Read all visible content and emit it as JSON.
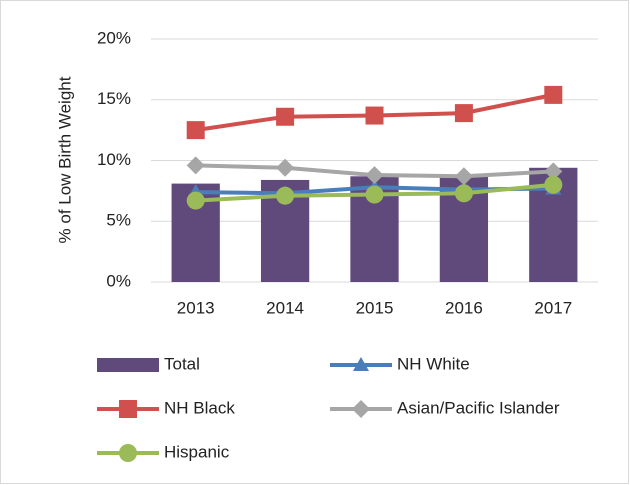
{
  "chart_data": {
    "type": "combo",
    "y_label": "% of Low Birth Weight",
    "categories": [
      "2013",
      "2014",
      "2015",
      "2016",
      "2017"
    ],
    "ylim": [
      0,
      20
    ],
    "yticks": [
      {
        "value": 0,
        "label": "0%"
      },
      {
        "value": 5,
        "label": "5%"
      },
      {
        "value": 10,
        "label": "10%"
      },
      {
        "value": 15,
        "label": "15%"
      },
      {
        "value": 20,
        "label": "20%"
      }
    ],
    "grid": true,
    "legend": "bottom",
    "series": [
      {
        "name": "Total",
        "type": "bar",
        "color": "#604a7b",
        "values": [
          8.1,
          8.4,
          8.7,
          8.7,
          9.4
        ]
      },
      {
        "name": "NH White",
        "type": "line",
        "marker": "triangle",
        "color": "#4a7ebb",
        "values": [
          7.4,
          7.3,
          7.8,
          7.6,
          7.7
        ]
      },
      {
        "name": "NH Black",
        "type": "line",
        "marker": "square",
        "color": "#d0504d",
        "values": [
          12.5,
          13.6,
          13.7,
          13.9,
          15.4
        ]
      },
      {
        "name": "Asian/Pacific Islander",
        "type": "line",
        "marker": "diamond",
        "color": "#a6a6a6",
        "values": [
          9.6,
          9.4,
          8.8,
          8.7,
          9.1
        ]
      },
      {
        "name": "Hispanic",
        "type": "line",
        "marker": "circle",
        "color": "#9bbb59",
        "values": [
          6.7,
          7.1,
          7.2,
          7.3,
          8.0
        ]
      }
    ]
  }
}
